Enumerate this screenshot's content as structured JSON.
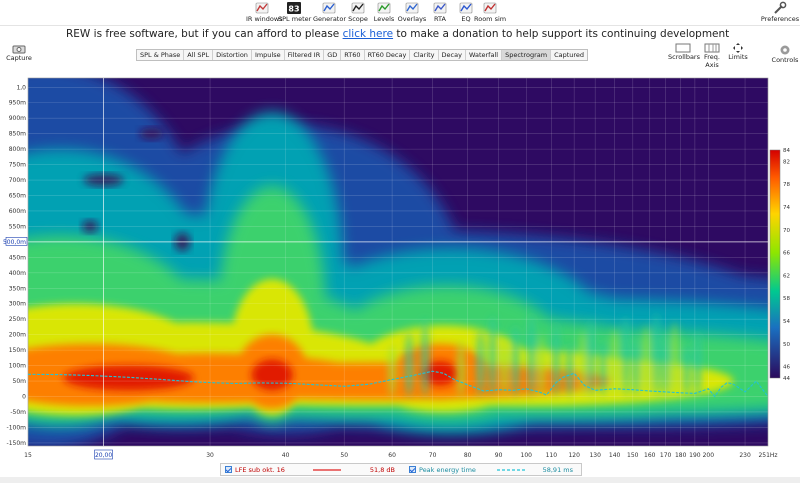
{
  "toolbar": {
    "items": [
      {
        "label": "IR windows",
        "icon": "ir-windows-icon"
      },
      {
        "label": "SPL meter",
        "icon": "spl-meter-icon",
        "value": "83"
      },
      {
        "label": "Generator",
        "icon": "generator-icon"
      },
      {
        "label": "Scope",
        "icon": "scope-icon"
      },
      {
        "label": "Levels",
        "icon": "levels-icon"
      },
      {
        "label": "Overlays",
        "icon": "overlays-icon"
      },
      {
        "label": "RTA",
        "icon": "rta-icon"
      },
      {
        "label": "EQ",
        "icon": "eq-icon"
      },
      {
        "label": "Room sim",
        "icon": "room-sim-icon"
      }
    ],
    "preferences": "Preferences"
  },
  "banner": {
    "before": "REW is free software, but if you can afford to please ",
    "link": "click here",
    "after": " to make a donation to help support its continuing development"
  },
  "capture": "Capture",
  "controls": "Controls",
  "right_buttons": {
    "scrollbars": "Scrollbars",
    "freq_axis": "Freq. Axis",
    "limits": "Limits"
  },
  "tabs": [
    "SPL & Phase",
    "All SPL",
    "Distortion",
    "Impulse",
    "Filtered IR",
    "GD",
    "RT60",
    "RT60 Decay",
    "Clarity",
    "Decay",
    "Waterfall",
    "Spectrogram",
    "Captured"
  ],
  "active_tab": "Spectrogram",
  "chart_data": {
    "type": "heatmap",
    "x_scale": "log",
    "x_ticks": [
      "15",
      "20,00",
      "30",
      "40",
      "50",
      "60",
      "70",
      "80",
      "90",
      "100",
      "110",
      "120",
      "130",
      "140",
      "150",
      "160",
      "170",
      "180",
      "190",
      "200",
      "230",
      "251Hz"
    ],
    "xlim": [
      15,
      251
    ],
    "y_ticks": [
      "1,0",
      "950m",
      "900m",
      "850m",
      "800m",
      "750m",
      "700m",
      "650m",
      "600m",
      "550m",
      "500,0m",
      "450m",
      "400m",
      "350m",
      "300m",
      "250m",
      "200m",
      "150m",
      "100m",
      "50m",
      "0",
      "-50m",
      "-100m",
      "-150m"
    ],
    "ylim": [
      -0.16,
      1.03
    ],
    "cursor": {
      "x": "20,00",
      "y": "500,0m"
    },
    "colorbar": {
      "ticks": [
        "84",
        "82",
        "78",
        "74",
        "70",
        "66",
        "62",
        "58",
        "54",
        "50",
        "46",
        "44"
      ],
      "range": [
        44,
        84
      ]
    },
    "series": [
      {
        "name": "Peak energy time",
        "color": "#22c3d6",
        "x": [
          15,
          17,
          19,
          20,
          22,
          25,
          28,
          30,
          33,
          36,
          40,
          45,
          50,
          55,
          60,
          65,
          70,
          73,
          76,
          80,
          85,
          90,
          95,
          100,
          105,
          108,
          112,
          115,
          120,
          125,
          130,
          140,
          150,
          160,
          170,
          180,
          190,
          200,
          205,
          210,
          215,
          220,
          230,
          240,
          251
        ],
        "y": [
          0.072,
          0.071,
          0.068,
          0.066,
          0.062,
          0.055,
          0.048,
          0.045,
          0.042,
          0.044,
          0.043,
          0.038,
          0.033,
          0.04,
          0.055,
          0.068,
          0.082,
          0.075,
          0.055,
          0.038,
          0.018,
          0.022,
          0.02,
          0.025,
          0.015,
          0.005,
          0.045,
          0.062,
          0.075,
          0.035,
          0.02,
          0.025,
          0.022,
          0.018,
          0.015,
          0.012,
          0.01,
          0.025,
          0.0,
          0.03,
          0.045,
          0.04,
          0.015,
          0.05,
          0.0
        ]
      }
    ]
  },
  "legend": {
    "item1_label": "LFE sub okt. 16",
    "item1_value": "51,8 dB",
    "item1_color": "#e02020",
    "item2_label": "Peak energy time",
    "item2_value": "58,91 ms",
    "item2_color": "#22c3d6"
  }
}
